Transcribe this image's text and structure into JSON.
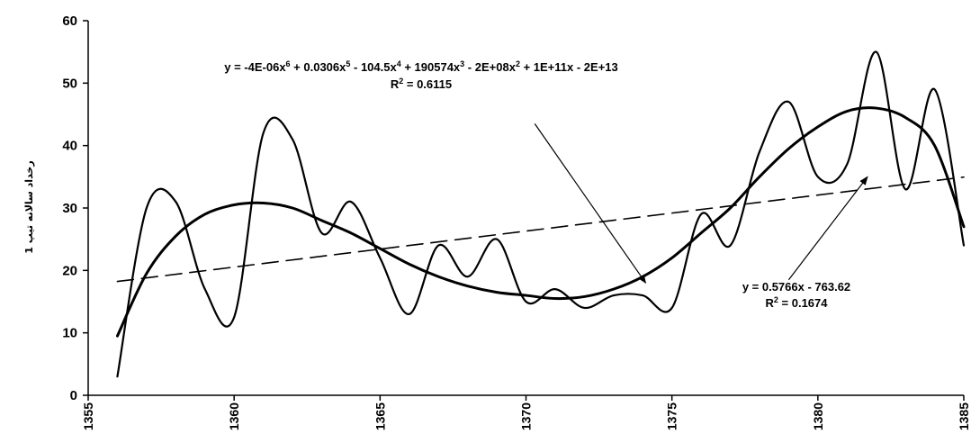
{
  "chart_data": {
    "type": "line",
    "title": "",
    "xlabel": "",
    "ylabel": "رخداد سالانه تیپ 1",
    "xlim": [
      1355,
      1385
    ],
    "ylim": [
      0,
      60
    ],
    "x_ticks": [
      "1355",
      "1360",
      "1365",
      "1370",
      "1375",
      "1380",
      "1385"
    ],
    "y_ticks": [
      "0",
      "10",
      "20",
      "30",
      "40",
      "50",
      "60"
    ],
    "grid": false,
    "legend": "none",
    "series": [
      {
        "kind": "observed",
        "style": "solid-smooth",
        "x": [
          1356,
          1357,
          1358,
          1359,
          1360,
          1361,
          1362,
          1363,
          1364,
          1365,
          1366,
          1367,
          1368,
          1369,
          1370,
          1371,
          1372,
          1373,
          1374,
          1375,
          1376,
          1377,
          1378,
          1379,
          1380,
          1381,
          1382,
          1383,
          1384,
          1385
        ],
        "y": [
          3,
          30,
          31,
          17,
          12.5,
          42,
          41,
          26,
          31,
          22,
          13,
          24,
          19,
          25,
          15,
          17,
          14,
          16,
          16,
          14,
          29,
          24,
          39,
          47,
          35,
          37,
          55,
          33,
          49,
          24
        ]
      },
      {
        "kind": "trend",
        "style": "solid-thick",
        "x": [
          1356,
          1357,
          1358,
          1359,
          1360,
          1361,
          1362,
          1363,
          1364,
          1365,
          1366,
          1367,
          1368,
          1369,
          1370,
          1371,
          1372,
          1373,
          1374,
          1375,
          1376,
          1377,
          1378,
          1379,
          1380,
          1381,
          1382,
          1383,
          1384,
          1385
        ],
        "y": [
          9.5,
          19.5,
          25.5,
          29,
          30.5,
          30.8,
          30,
          28,
          26,
          23.5,
          21,
          19,
          17.5,
          16.5,
          16,
          15.5,
          15.8,
          17,
          19,
          22,
          26,
          30,
          35,
          39.5,
          43,
          45.5,
          46,
          44.5,
          40,
          27
        ]
      },
      {
        "kind": "trend",
        "style": "dashed",
        "x": [
          1356,
          1385
        ],
        "y": [
          18.23,
          34.95
        ]
      }
    ],
    "annotations": [
      {
        "id": "poly",
        "line1": {
          "a": "y = -4E-06x",
          "a_exp": "6",
          "b": " + 0.0306x",
          "b_exp": "5",
          "c": " - 104.5x",
          "c_exp": "4",
          "d": " + 190574x",
          "d_exp": "3",
          "e": " - 2E+08x",
          "e_exp": "2",
          "f": " + 1E+11x - 2E+13"
        },
        "line2": {
          "a": "R",
          "a_exp": "2",
          "b": " = 0.6115"
        },
        "arrow_from": [
          1370.3,
          43.5
        ],
        "arrow_to": [
          1374.1,
          18
        ]
      },
      {
        "id": "linear",
        "line1": {
          "a": "y = 0.5766x - 763.62"
        },
        "line2": {
          "a": "R",
          "a_exp": "2",
          "b": " = 0.1674"
        },
        "arrow_from": [
          1379,
          18.5
        ],
        "arrow_to": [
          1381.7,
          35
        ]
      }
    ]
  }
}
